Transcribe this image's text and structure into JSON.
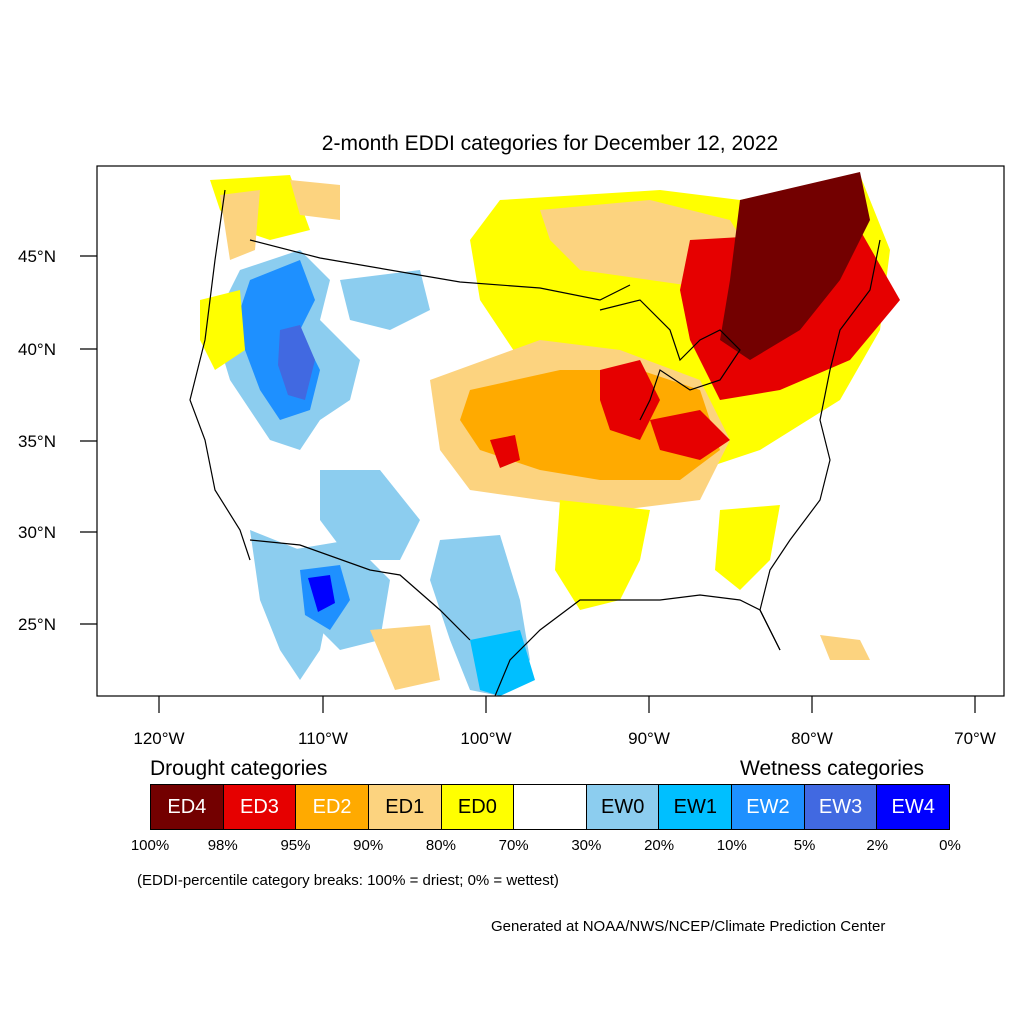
{
  "title": "2-month EDDI categories for December 12, 2022",
  "lat_labels": [
    "45°N",
    "40°N",
    "35°N",
    "30°N",
    "25°N"
  ],
  "lon_labels": [
    "120°W",
    "110°W",
    "100°W",
    "90°W",
    "80°W",
    "70°W"
  ],
  "legend": {
    "drought_heading": "Drought categories",
    "wetness_heading": "Wetness categories",
    "categories": [
      {
        "label": "ED4",
        "color": "#730000",
        "text_color": "#ffffff"
      },
      {
        "label": "ED3",
        "color": "#e60000",
        "text_color": "#ffffff"
      },
      {
        "label": "ED2",
        "color": "#ffaa00",
        "text_color": "#ffffff"
      },
      {
        "label": "ED1",
        "color": "#fcd37f",
        "text_color": "#000000"
      },
      {
        "label": "ED0",
        "color": "#ffff00",
        "text_color": "#000000"
      },
      {
        "label": "",
        "color": "#ffffff",
        "text_color": "#000000"
      },
      {
        "label": "EW0",
        "color": "#8ccdef",
        "text_color": "#000000"
      },
      {
        "label": "EW1",
        "color": "#00bfff",
        "text_color": "#000000"
      },
      {
        "label": "EW2",
        "color": "#1e90ff",
        "text_color": "#ffffff"
      },
      {
        "label": "EW3",
        "color": "#4169e1",
        "text_color": "#ffffff"
      },
      {
        "label": "EW4",
        "color": "#0000ff",
        "text_color": "#ffffff"
      }
    ],
    "percentiles": [
      "100%",
      "98%",
      "95%",
      "90%",
      "80%",
      "70%",
      "30%",
      "20%",
      "10%",
      "5%",
      "2%",
      "0%"
    ]
  },
  "note": "(EDDI-percentile category breaks: 100% = driest; 0% = wettest)",
  "credit": "Generated at NOAA/NWS/NCEP/Climate Prediction Center"
}
